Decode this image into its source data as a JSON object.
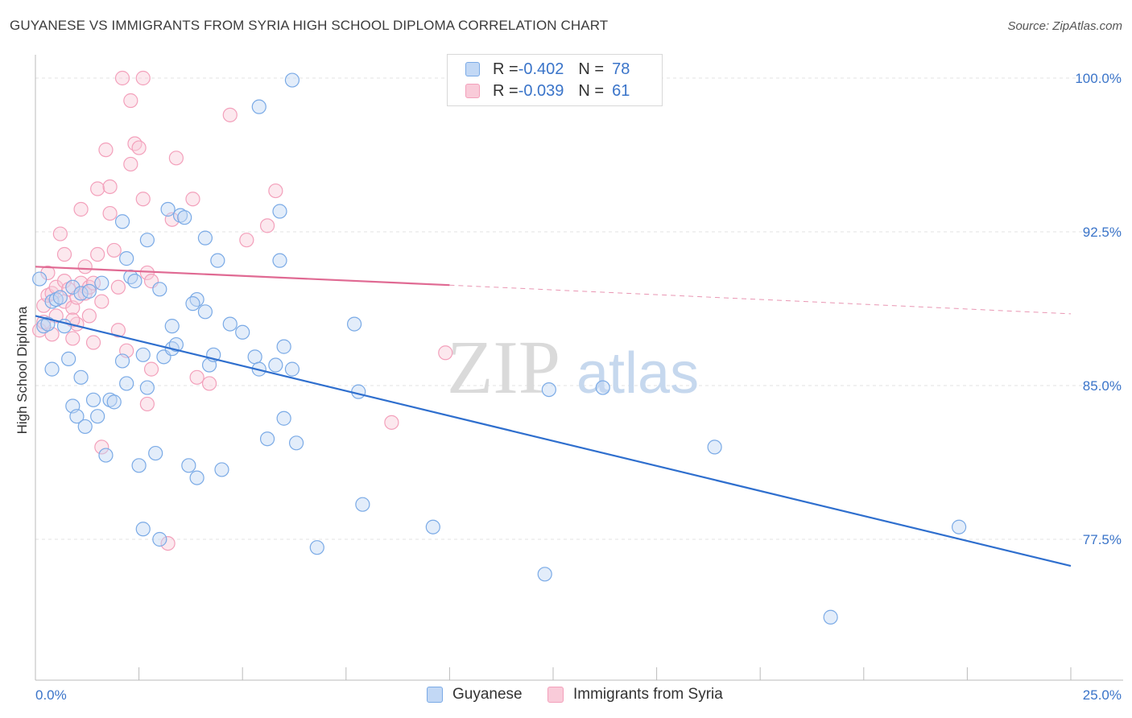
{
  "title": "GUYANESE VS IMMIGRANTS FROM SYRIA HIGH SCHOOL DIPLOMA CORRELATION CHART",
  "source": "Source: ZipAtlas.com",
  "watermark": {
    "zip": "ZIP",
    "atlas": "atlas"
  },
  "legend_top": [
    {
      "r_label": "R = ",
      "r_value": "-0.402",
      "n_label": "N = ",
      "n_value": "78"
    },
    {
      "r_label": "R = ",
      "r_value": "-0.039",
      "n_label": "N = ",
      "n_value": "61"
    }
  ],
  "chart_data": {
    "type": "scatter",
    "title": "GUYANESE VS IMMIGRANTS FROM SYRIA HIGH SCHOOL DIPLOMA CORRELATION CHART",
    "xlabel": "",
    "ylabel": "High School Diploma",
    "xlim": [
      0,
      25
    ],
    "ylim": [
      71,
      101.5
    ],
    "x_tick_labels": [
      "0.0%",
      "25.0%"
    ],
    "y_ticks": [
      77.5,
      85.0,
      92.5,
      100.0
    ],
    "y_tick_labels": [
      "77.5%",
      "85.0%",
      "92.5%",
      "100.0%"
    ],
    "grid": true,
    "legend_position": "bottom-center",
    "colors": {
      "guyanese": "#7aaae6",
      "syria": "#f3a0bb",
      "guyanese_line": "#2f6fce",
      "syria_line": "#e06a93",
      "tick_label": "#3a74c9"
    },
    "series": [
      {
        "name": "Guyanese",
        "r": -0.402,
        "n": 78,
        "trend": {
          "x": [
            0,
            25
          ],
          "y": [
            88.4,
            76.2
          ]
        },
        "points": [
          [
            0.1,
            90.2
          ],
          [
            0.2,
            87.9
          ],
          [
            0.3,
            88.0
          ],
          [
            0.4,
            89.1
          ],
          [
            0.5,
            89.2
          ],
          [
            0.6,
            89.3
          ],
          [
            0.4,
            85.8
          ],
          [
            0.7,
            87.9
          ],
          [
            0.9,
            89.8
          ],
          [
            1.1,
            89.5
          ],
          [
            1.3,
            89.6
          ],
          [
            1.6,
            90.0
          ],
          [
            1.1,
            85.4
          ],
          [
            0.9,
            84.0
          ],
          [
            1.0,
            83.5
          ],
          [
            1.2,
            83.0
          ],
          [
            1.5,
            83.5
          ],
          [
            1.7,
            81.6
          ],
          [
            1.8,
            84.3
          ],
          [
            1.9,
            84.2
          ],
          [
            2.1,
            86.2
          ],
          [
            2.1,
            93.0
          ],
          [
            2.2,
            85.1
          ],
          [
            2.2,
            91.2
          ],
          [
            2.3,
            90.3
          ],
          [
            2.4,
            90.1
          ],
          [
            2.5,
            81.1
          ],
          [
            2.6,
            78.0
          ],
          [
            2.6,
            86.5
          ],
          [
            2.7,
            92.1
          ],
          [
            2.7,
            84.9
          ],
          [
            2.9,
            81.7
          ],
          [
            3.0,
            77.5
          ],
          [
            3.0,
            89.7
          ],
          [
            3.1,
            86.4
          ],
          [
            3.2,
            93.6
          ],
          [
            3.3,
            86.8
          ],
          [
            3.3,
            87.9
          ],
          [
            3.4,
            87.0
          ],
          [
            3.5,
            93.3
          ],
          [
            3.6,
            93.2
          ],
          [
            3.7,
            81.1
          ],
          [
            3.9,
            80.5
          ],
          [
            3.9,
            89.2
          ],
          [
            4.1,
            92.2
          ],
          [
            4.1,
            88.6
          ],
          [
            4.2,
            86.0
          ],
          [
            4.3,
            86.5
          ],
          [
            4.4,
            91.1
          ],
          [
            4.5,
            80.9
          ],
          [
            4.7,
            88.0
          ],
          [
            5.0,
            87.6
          ],
          [
            5.3,
            86.4
          ],
          [
            5.4,
            85.8
          ],
          [
            5.4,
            98.6
          ],
          [
            5.6,
            82.4
          ],
          [
            5.8,
            86.0
          ],
          [
            5.9,
            93.5
          ],
          [
            5.9,
            91.1
          ],
          [
            6.0,
            86.9
          ],
          [
            6.0,
            83.4
          ],
          [
            6.2,
            85.8
          ],
          [
            6.3,
            82.2
          ],
          [
            6.2,
            99.9
          ],
          [
            6.8,
            77.1
          ],
          [
            7.7,
            88.0
          ],
          [
            7.8,
            84.7
          ],
          [
            7.9,
            79.2
          ],
          [
            9.6,
            78.1
          ],
          [
            12.4,
            84.8
          ],
          [
            12.3,
            75.8
          ],
          [
            13.7,
            84.9
          ],
          [
            16.4,
            82.0
          ],
          [
            19.2,
            73.7
          ],
          [
            22.3,
            78.1
          ],
          [
            0.8,
            86.3
          ],
          [
            1.4,
            84.3
          ],
          [
            3.8,
            89.0
          ]
        ]
      },
      {
        "name": "Immigrants from Syria",
        "r": -0.039,
        "n": 61,
        "trend": {
          "x": [
            0,
            10
          ],
          "y": [
            90.8,
            89.9
          ]
        },
        "trend_extension": {
          "x": [
            10,
            25
          ],
          "y": [
            89.9,
            88.5
          ]
        },
        "points": [
          [
            0.1,
            87.7
          ],
          [
            0.2,
            88.1
          ],
          [
            0.2,
            88.9
          ],
          [
            0.3,
            90.5
          ],
          [
            0.3,
            89.4
          ],
          [
            0.4,
            89.5
          ],
          [
            0.5,
            89.8
          ],
          [
            0.5,
            88.4
          ],
          [
            0.6,
            92.4
          ],
          [
            0.7,
            91.4
          ],
          [
            0.7,
            90.1
          ],
          [
            0.7,
            89.1
          ],
          [
            0.8,
            89.7
          ],
          [
            0.9,
            88.8
          ],
          [
            0.9,
            87.3
          ],
          [
            1.0,
            89.3
          ],
          [
            1.0,
            88.0
          ],
          [
            1.1,
            90.0
          ],
          [
            1.1,
            93.6
          ],
          [
            1.2,
            90.8
          ],
          [
            1.2,
            89.5
          ],
          [
            1.3,
            88.4
          ],
          [
            1.3,
            89.8
          ],
          [
            1.4,
            87.1
          ],
          [
            1.5,
            94.6
          ],
          [
            1.5,
            91.4
          ],
          [
            1.6,
            89.1
          ],
          [
            1.6,
            82.0
          ],
          [
            1.7,
            96.5
          ],
          [
            1.8,
            94.7
          ],
          [
            1.8,
            93.4
          ],
          [
            1.9,
            91.6
          ],
          [
            2.0,
            89.8
          ],
          [
            2.0,
            87.7
          ],
          [
            2.1,
            100.0
          ],
          [
            2.2,
            86.7
          ],
          [
            2.3,
            98.9
          ],
          [
            2.3,
            95.8
          ],
          [
            2.4,
            96.8
          ],
          [
            2.5,
            96.6
          ],
          [
            2.6,
            94.1
          ],
          [
            2.6,
            100.0
          ],
          [
            2.7,
            90.5
          ],
          [
            2.7,
            84.1
          ],
          [
            2.8,
            90.1
          ],
          [
            2.8,
            85.8
          ],
          [
            3.2,
            77.3
          ],
          [
            3.3,
            93.1
          ],
          [
            3.4,
            96.1
          ],
          [
            3.8,
            94.1
          ],
          [
            3.9,
            85.4
          ],
          [
            4.2,
            85.1
          ],
          [
            4.7,
            98.2
          ],
          [
            5.1,
            92.1
          ],
          [
            5.6,
            92.8
          ],
          [
            5.8,
            94.5
          ],
          [
            8.6,
            83.2
          ],
          [
            9.9,
            86.6
          ],
          [
            0.9,
            88.2
          ],
          [
            1.4,
            90.0
          ],
          [
            0.4,
            87.5
          ]
        ]
      }
    ]
  },
  "legend_bottom": [
    "Guyanese",
    "Immigrants from Syria"
  ]
}
